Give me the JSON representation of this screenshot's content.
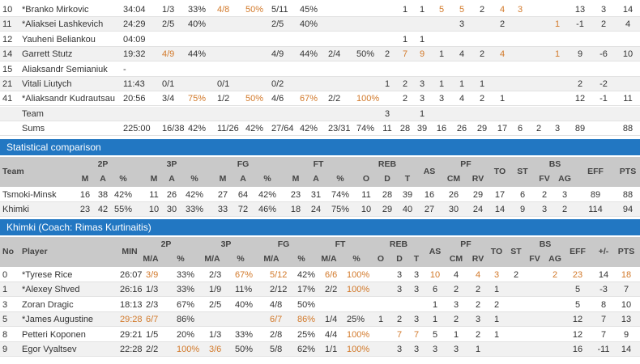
{
  "top_rows": [
    {
      "cells": [
        "10",
        "*Branko Mirkovic",
        "34:04",
        "1/3",
        "33%",
        "4/8",
        "50%",
        "5/11",
        "45%",
        null,
        null,
        null,
        "1",
        "1",
        "5",
        "5",
        "2",
        "4",
        "3",
        null,
        null,
        "13",
        "3",
        "14"
      ],
      "orange_cells": [
        5,
        6,
        14,
        15,
        17,
        18
      ]
    },
    {
      "cells": [
        "11",
        "*Aliaksei Lashkevich",
        "24:29",
        "2/5",
        "40%",
        null,
        null,
        "2/5",
        "40%",
        null,
        null,
        null,
        null,
        null,
        null,
        "3",
        null,
        "2",
        null,
        null,
        "1",
        "-1",
        "2",
        "4"
      ],
      "orange_cells": [
        20
      ]
    },
    {
      "cells": [
        "12",
        "Yauheni Beliankou",
        "04:09",
        null,
        null,
        null,
        null,
        null,
        null,
        null,
        null,
        null,
        "1",
        "1",
        null,
        null,
        null,
        null,
        null,
        null,
        null,
        null,
        null,
        null
      ],
      "orange_cells": []
    },
    {
      "cells": [
        "14",
        "Garrett Stutz",
        "19:32",
        "4/9",
        "44%",
        null,
        null,
        "4/9",
        "44%",
        "2/4",
        "50%",
        "2",
        "7",
        "9",
        "1",
        "4",
        "2",
        "4",
        null,
        null,
        "1",
        "9",
        "-6",
        "10"
      ],
      "orange_cells": [
        3,
        12,
        13,
        17,
        20
      ]
    },
    {
      "cells": [
        "15",
        "Aliaksandr Semianiuk",
        "-",
        null,
        null,
        null,
        null,
        null,
        null,
        null,
        null,
        null,
        null,
        null,
        null,
        null,
        null,
        null,
        null,
        null,
        null,
        null,
        null,
        null
      ],
      "orange_cells": []
    },
    {
      "cells": [
        "21",
        "Vitali Liutych",
        "11:43",
        "0/1",
        null,
        "0/1",
        null,
        "0/2",
        null,
        null,
        null,
        "1",
        "2",
        "3",
        "1",
        "1",
        "1",
        null,
        null,
        null,
        null,
        "2",
        "-2",
        null
      ],
      "orange_cells": []
    },
    {
      "cells": [
        "41",
        "*Aliaksandr Kudrautsau",
        "20:56",
        "3/4",
        "75%",
        "1/2",
        "50%",
        "4/6",
        "67%",
        "2/2",
        "100%",
        null,
        "2",
        "3",
        "3",
        "4",
        "2",
        "1",
        null,
        null,
        null,
        "12",
        "-1",
        "11"
      ],
      "orange_cells": [
        4,
        6,
        8,
        10
      ]
    },
    {
      "cells": [
        null,
        "Team",
        null,
        null,
        null,
        null,
        null,
        null,
        null,
        null,
        null,
        "3",
        null,
        "1",
        null,
        null,
        null,
        null,
        null,
        null,
        null,
        null,
        null,
        null
      ],
      "orange_cells": []
    },
    {
      "cells": [
        null,
        "Sums",
        "225:00",
        "16/38",
        "42%",
        "11/26",
        "42%",
        "27/64",
        "42%",
        "23/31",
        "74%",
        "11",
        "28",
        "39",
        "16",
        "26",
        "29",
        "17",
        "6",
        "2",
        "3",
        "89",
        null,
        "88"
      ],
      "orange_cells": []
    }
  ],
  "comparison": {
    "title": "Statistical comparison",
    "team_header": "Team",
    "groups": [
      "2P",
      "3P",
      "FG",
      "FT",
      "REB",
      "PF",
      "BS"
    ],
    "singles": [
      "AS",
      "TO",
      "ST",
      "EFF",
      "PTS"
    ],
    "subheaders": [
      "M",
      "A",
      "%",
      "M",
      "A",
      "%",
      "M",
      "A",
      "%",
      "M",
      "A",
      "%",
      "O",
      "D",
      "T",
      "CM",
      "RV",
      "FV",
      "AG"
    ],
    "rows": [
      [
        "Tsmoki-Minsk",
        "16",
        "38",
        "42%",
        "11",
        "26",
        "42%",
        "27",
        "64",
        "42%",
        "23",
        "31",
        "74%",
        "11",
        "28",
        "39",
        "16",
        "26",
        "29",
        "17",
        "6",
        "2",
        "3",
        "89",
        "88"
      ],
      [
        "Khimki",
        "23",
        "42",
        "55%",
        "10",
        "30",
        "33%",
        "33",
        "72",
        "46%",
        "18",
        "24",
        "75%",
        "10",
        "29",
        "40",
        "27",
        "30",
        "24",
        "14",
        "9",
        "3",
        "2",
        "114",
        "94"
      ]
    ]
  },
  "khimki": {
    "title": "Khimki (Coach: Rimas Kurtinaitis)",
    "headers": [
      "No",
      "Player",
      "MIN",
      "AS",
      "TO",
      "ST",
      "EFF",
      "+/-",
      "PTS"
    ],
    "groups": [
      "2P",
      "3P",
      "FG",
      "FT",
      "REB",
      "PF",
      "BS"
    ],
    "subheaders": [
      "M/A",
      "%",
      "M/A",
      "%",
      "M/A",
      "%",
      "M/A",
      "%",
      "O",
      "D",
      "T",
      "CM",
      "RV",
      "FV",
      "AG"
    ],
    "rows": [
      {
        "cells": [
          "0",
          "*Tyrese Rice",
          "26:07",
          "3/9",
          "33%",
          "2/3",
          "67%",
          "5/12",
          "42%",
          "6/6",
          "100%",
          null,
          "3",
          "3",
          "10",
          "4",
          "4",
          "3",
          "2",
          null,
          "2",
          "23",
          "14",
          "18"
        ],
        "orange_cells": [
          3,
          6,
          7,
          9,
          10,
          14,
          16,
          17,
          20,
          21,
          23
        ]
      },
      {
        "cells": [
          "1",
          "*Alexey Shved",
          "26:16",
          "1/3",
          "33%",
          "1/9",
          "11%",
          "2/12",
          "17%",
          "2/2",
          "100%",
          null,
          "3",
          "3",
          "6",
          "2",
          "2",
          "1",
          null,
          null,
          null,
          "5",
          "-3",
          "7"
        ],
        "orange_cells": [
          10
        ]
      },
      {
        "cells": [
          "3",
          "Zoran Dragic",
          "18:13",
          "2/3",
          "67%",
          "2/5",
          "40%",
          "4/8",
          "50%",
          null,
          null,
          null,
          null,
          null,
          "1",
          "3",
          "2",
          "2",
          null,
          null,
          null,
          "5",
          "8",
          "10"
        ],
        "orange_cells": []
      },
      {
        "cells": [
          "5",
          "*James Augustine",
          "29:28",
          "6/7",
          "86%",
          null,
          null,
          "6/7",
          "86%",
          "1/4",
          "25%",
          "1",
          "2",
          "3",
          "1",
          "2",
          "3",
          "1",
          null,
          null,
          null,
          "12",
          "7",
          "13"
        ],
        "orange_cells": [
          2,
          3,
          7,
          8
        ]
      },
      {
        "cells": [
          "8",
          "Petteri Koponen",
          "29:21",
          "1/5",
          "20%",
          "1/3",
          "33%",
          "2/8",
          "25%",
          "4/4",
          "100%",
          null,
          "7",
          "7",
          "5",
          "1",
          "2",
          "1",
          null,
          null,
          null,
          "12",
          "7",
          "9"
        ],
        "orange_cells": [
          10,
          12,
          13
        ]
      },
      {
        "cells": [
          "9",
          "Egor Vyaltsev",
          "22:28",
          "2/2",
          "100%",
          "3/6",
          "50%",
          "5/8",
          "62%",
          "1/1",
          "100%",
          null,
          "3",
          "3",
          "3",
          "3",
          "1",
          null,
          null,
          null,
          null,
          "16",
          "-11",
          "14"
        ],
        "orange_cells": [
          4,
          5,
          10
        ]
      }
    ]
  }
}
